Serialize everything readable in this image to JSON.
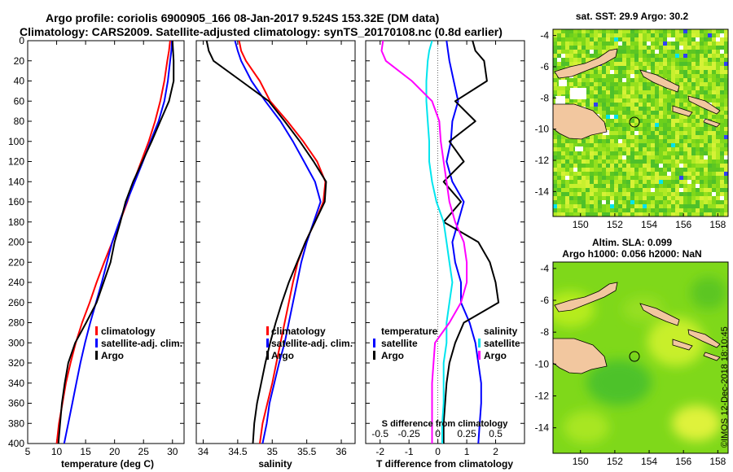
{
  "header": {
    "title_line1": "Argo profile: coriolis 6900905_166 08-Jan-2017 9.524S 153.32E (DM data)",
    "title_line2": "Climatology: CARS2009. Satellite-adjusted climatology: synTS_20170108.nc (0.8d earlier)"
  },
  "colors": {
    "climatology": "#ff0000",
    "satellite": "#0000ff",
    "argo": "#000000",
    "sat_salinity": "#00e5ee",
    "clim_salinity": "#ff00ff"
  },
  "chart_data": [
    {
      "type": "line",
      "name": "temperature-profile",
      "xlabel": "temperature (deg C)",
      "ylabel": "",
      "xlim": [
        5,
        32
      ],
      "ylim": [
        400,
        0
      ],
      "xticks": [
        "5",
        "10",
        "15",
        "20",
        "25",
        "30"
      ],
      "xtick_values": [
        5,
        10,
        15,
        20,
        25,
        30
      ],
      "yticks": [
        "0",
        "20",
        "40",
        "60",
        "80",
        "100",
        "120",
        "140",
        "160",
        "180",
        "200",
        "220",
        "240",
        "260",
        "280",
        "300",
        "320",
        "340",
        "360",
        "380",
        "400"
      ],
      "ytick_values": [
        0,
        20,
        40,
        60,
        80,
        100,
        120,
        140,
        160,
        180,
        200,
        220,
        240,
        260,
        280,
        300,
        320,
        340,
        360,
        380,
        400
      ],
      "legend": [
        "climatology",
        "satellite-adj. clim.",
        "Argo"
      ],
      "series": [
        {
          "name": "climatology",
          "color": "#ff0000",
          "x": [
            29.6,
            29.4,
            29.1,
            28.6,
            27.9,
            27.0,
            25.9,
            24.6,
            23.3,
            22.2,
            20.9,
            19.6,
            18.2,
            16.9,
            15.7,
            14.4,
            13.3,
            12.4,
            11.6,
            11.0,
            10.4,
            10.0
          ],
          "y": [
            0,
            10,
            20,
            40,
            60,
            80,
            100,
            120,
            140,
            160,
            180,
            200,
            220,
            240,
            260,
            280,
            300,
            320,
            340,
            360,
            380,
            400
          ]
        },
        {
          "name": "satellite-adj. clim.",
          "color": "#0000ff",
          "x": [
            29.9,
            29.8,
            29.6,
            29.2,
            28.6,
            27.6,
            26.2,
            24.9,
            23.5,
            22.1,
            20.8,
            19.6,
            18.7,
            17.8,
            16.8,
            15.8,
            14.9,
            14.1,
            13.4,
            12.7,
            12.0,
            11.3
          ],
          "y": [
            0,
            10,
            20,
            40,
            60,
            80,
            100,
            120,
            140,
            160,
            180,
            200,
            220,
            240,
            260,
            280,
            300,
            320,
            340,
            360,
            380,
            400
          ]
        },
        {
          "name": "Argo",
          "color": "#000000",
          "x": [
            30.0,
            30.1,
            30.2,
            30.2,
            29.4,
            27.9,
            26.4,
            24.8,
            23.2,
            21.9,
            21.0,
            20.0,
            19.3,
            18.1,
            16.9,
            15.1,
            13.2,
            12.0,
            11.4,
            10.9,
            10.6,
            10.3
          ],
          "y": [
            0,
            10,
            20,
            40,
            60,
            80,
            100,
            120,
            140,
            160,
            180,
            200,
            220,
            240,
            260,
            280,
            300,
            320,
            340,
            360,
            380,
            400
          ]
        }
      ]
    },
    {
      "type": "line",
      "name": "salinity-profile",
      "xlabel": "salinity",
      "xlim": [
        33.9,
        36.2
      ],
      "ylim": [
        400,
        0
      ],
      "xticks": [
        "34",
        "34.5",
        "35",
        "35.5",
        "36"
      ],
      "xtick_values": [
        34,
        34.5,
        35,
        35.5,
        36
      ],
      "legend": [
        "climatology",
        "satellite-adj. clim.",
        "Argo"
      ],
      "series": [
        {
          "name": "climatology",
          "color": "#ff0000",
          "x": [
            34.52,
            34.55,
            34.62,
            34.82,
            34.97,
            35.22,
            35.45,
            35.65,
            35.77,
            35.74,
            35.62,
            35.48,
            35.37,
            35.3,
            35.24,
            35.18,
            35.12,
            35.06,
            35.0,
            34.93,
            34.86,
            34.82
          ],
          "y": [
            0,
            10,
            20,
            40,
            60,
            80,
            100,
            120,
            140,
            160,
            180,
            200,
            220,
            240,
            260,
            280,
            300,
            320,
            340,
            360,
            380,
            400
          ]
        },
        {
          "name": "satellite-adj. clim.",
          "color": "#0000ff",
          "x": [
            34.46,
            34.5,
            34.55,
            34.7,
            34.9,
            35.12,
            35.3,
            35.46,
            35.62,
            35.7,
            35.6,
            35.5,
            35.42,
            35.36,
            35.3,
            35.24,
            35.18,
            35.1,
            35.03,
            34.96,
            34.92,
            34.86
          ],
          "y": [
            0,
            10,
            20,
            40,
            60,
            80,
            100,
            120,
            140,
            160,
            180,
            200,
            220,
            240,
            260,
            280,
            300,
            320,
            340,
            360,
            380,
            400
          ]
        },
        {
          "name": "Argo",
          "color": "#000000",
          "x": [
            34.05,
            34.08,
            34.15,
            34.55,
            34.95,
            35.18,
            35.4,
            35.6,
            35.78,
            35.76,
            35.62,
            35.48,
            35.36,
            35.24,
            35.14,
            35.05,
            34.97,
            34.9,
            34.84,
            34.78,
            34.74,
            34.72
          ],
          "y": [
            0,
            10,
            20,
            40,
            60,
            80,
            100,
            120,
            140,
            160,
            180,
            200,
            220,
            240,
            260,
            280,
            300,
            320,
            340,
            360,
            380,
            400
          ]
        }
      ]
    },
    {
      "type": "line",
      "name": "difference-profile",
      "xlabel": "T difference from climatology",
      "top_axis_label": "S difference from climatology",
      "xlim": [
        -2.5,
        3.0
      ],
      "ylim": [
        400,
        0
      ],
      "xticks": [
        "-2",
        "-1",
        "0",
        "1",
        "2"
      ],
      "xtick_values": [
        -2,
        -1,
        0,
        1,
        2
      ],
      "top_xticks": [
        "-0.5",
        "-0.25",
        "0",
        "0.25",
        "0.5"
      ],
      "top_xtick_values": [
        -0.5,
        -0.25,
        0,
        0.25,
        0.5
      ],
      "legend_left_title": "temperature",
      "legend_right_title": "salinity",
      "legend_left": [
        "satellite",
        "Argo"
      ],
      "legend_right": [
        "satellite",
        "Argo"
      ],
      "series": [
        {
          "name": "temperature satellite",
          "color": "#0000ff",
          "x": [
            0.3,
            0.35,
            0.4,
            0.55,
            0.7,
            0.5,
            0.45,
            0.3,
            0.5,
            0.9,
            0.7,
            0.5,
            0.6,
            0.8,
            0.8,
            1.1,
            1.3,
            1.4,
            1.5,
            1.5,
            1.45,
            1.4
          ],
          "y": [
            0,
            10,
            20,
            40,
            60,
            80,
            100,
            120,
            140,
            160,
            180,
            200,
            220,
            240,
            260,
            280,
            300,
            320,
            340,
            360,
            380,
            400
          ]
        },
        {
          "name": "temperature Argo",
          "color": "#000000",
          "x": [
            1.2,
            1.3,
            1.6,
            1.7,
            0.6,
            1.3,
            0.4,
            0.9,
            0.2,
            0.8,
            0.2,
            1.4,
            1.8,
            2.0,
            2.1,
            0.9,
            0.6,
            0.4,
            0.3,
            0.25,
            0.2,
            0.2
          ],
          "y": [
            0,
            10,
            20,
            40,
            60,
            80,
            100,
            120,
            140,
            160,
            180,
            200,
            220,
            240,
            260,
            280,
            300,
            320,
            340,
            360,
            380,
            400
          ]
        },
        {
          "name": "salinity satellite",
          "color": "#00e5ee",
          "x": [
            -0.2,
            -0.3,
            -0.35,
            -0.4,
            -0.4,
            -0.35,
            -0.3,
            -0.3,
            -0.2,
            -0.05,
            0.2,
            0.3,
            0.4,
            0.5,
            0.4,
            0.3,
            0.3,
            0.2,
            0.2,
            0.2,
            0.15,
            0.15
          ],
          "y": [
            0,
            10,
            20,
            40,
            60,
            80,
            100,
            120,
            140,
            160,
            180,
            200,
            220,
            240,
            260,
            280,
            300,
            320,
            340,
            360,
            380,
            400
          ]
        },
        {
          "name": "salinity Argo",
          "color": "#ff00ff",
          "x": [
            -1.9,
            -1.95,
            -1.8,
            -0.9,
            -0.2,
            0.05,
            0.1,
            0.2,
            0.3,
            0.4,
            0.6,
            0.9,
            1.0,
            1.0,
            0.8,
            0.4,
            -0.1,
            -0.15,
            -0.2,
            -0.2,
            -0.2,
            -0.2
          ],
          "y": [
            0,
            10,
            20,
            40,
            60,
            80,
            100,
            120,
            140,
            160,
            180,
            200,
            220,
            240,
            260,
            280,
            300,
            320,
            340,
            360,
            380,
            400
          ]
        }
      ]
    },
    {
      "type": "heatmap",
      "name": "sst-map",
      "title": "sat. SST: 29.9 Argo: 30.2",
      "xlim": [
        148.4,
        158.6
      ],
      "ylim": [
        -15.6,
        -3.6
      ],
      "xticks": [
        "150",
        "152",
        "154",
        "156",
        "158"
      ],
      "xtick_values": [
        150,
        152,
        154,
        156,
        158
      ],
      "yticks": [
        "-4",
        "-6",
        "-8",
        "-10",
        "-12",
        "-14"
      ],
      "ytick_values": [
        -4,
        -6,
        -8,
        -10,
        -12,
        -14
      ],
      "marker": {
        "lon": 153.32,
        "lat": -9.524
      }
    },
    {
      "type": "heatmap",
      "name": "sla-map",
      "title_line1": "Altim. SLA: 0.099",
      "title_line2": "Argo h1000: 0.056 h2000: NaN",
      "xlim": [
        148.4,
        158.6
      ],
      "ylim": [
        -15.6,
        -3.6
      ],
      "xticks": [
        "150",
        "152",
        "154",
        "156",
        "158"
      ],
      "xtick_values": [
        150,
        152,
        154,
        156,
        158
      ],
      "yticks": [
        "-4",
        "-6",
        "-8",
        "-10",
        "-12",
        "-14"
      ],
      "ytick_values": [
        -4,
        -6,
        -8,
        -10,
        -12,
        -14
      ],
      "marker": {
        "lon": 153.32,
        "lat": -9.524
      }
    }
  ],
  "footer": {
    "watermark": "©IMOS 12-Dec-2018 18:10:45"
  }
}
